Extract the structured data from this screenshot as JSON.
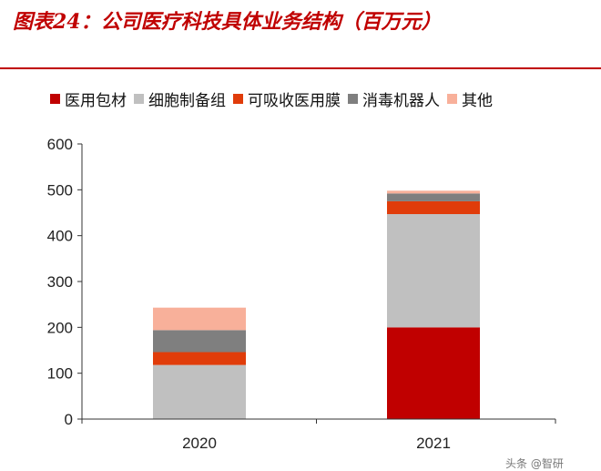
{
  "title": "图表24：公司医疗科技具体业务结构（百万元）",
  "footer": "头条 @智研",
  "chart_data": {
    "type": "bar",
    "stacked": true,
    "categories": [
      "2020",
      "2021"
    ],
    "series": [
      {
        "name": "医用包材",
        "color": "#c00000",
        "values": [
          0,
          200
        ]
      },
      {
        "name": "细胞制备组",
        "color": "#c0c0c0",
        "values": [
          118,
          247
        ]
      },
      {
        "name": "可吸收医用膜",
        "color": "#e03c0a",
        "values": [
          28,
          28
        ]
      },
      {
        "name": "消毒机器人",
        "color": "#7f7f7f",
        "values": [
          48,
          17
        ]
      },
      {
        "name": "其他",
        "color": "#f8b09a",
        "values": [
          49,
          6
        ]
      }
    ],
    "ylim": [
      0,
      600
    ],
    "yticks": [
      0,
      100,
      200,
      300,
      400,
      500,
      600
    ],
    "legend": "top",
    "grid": false
  }
}
